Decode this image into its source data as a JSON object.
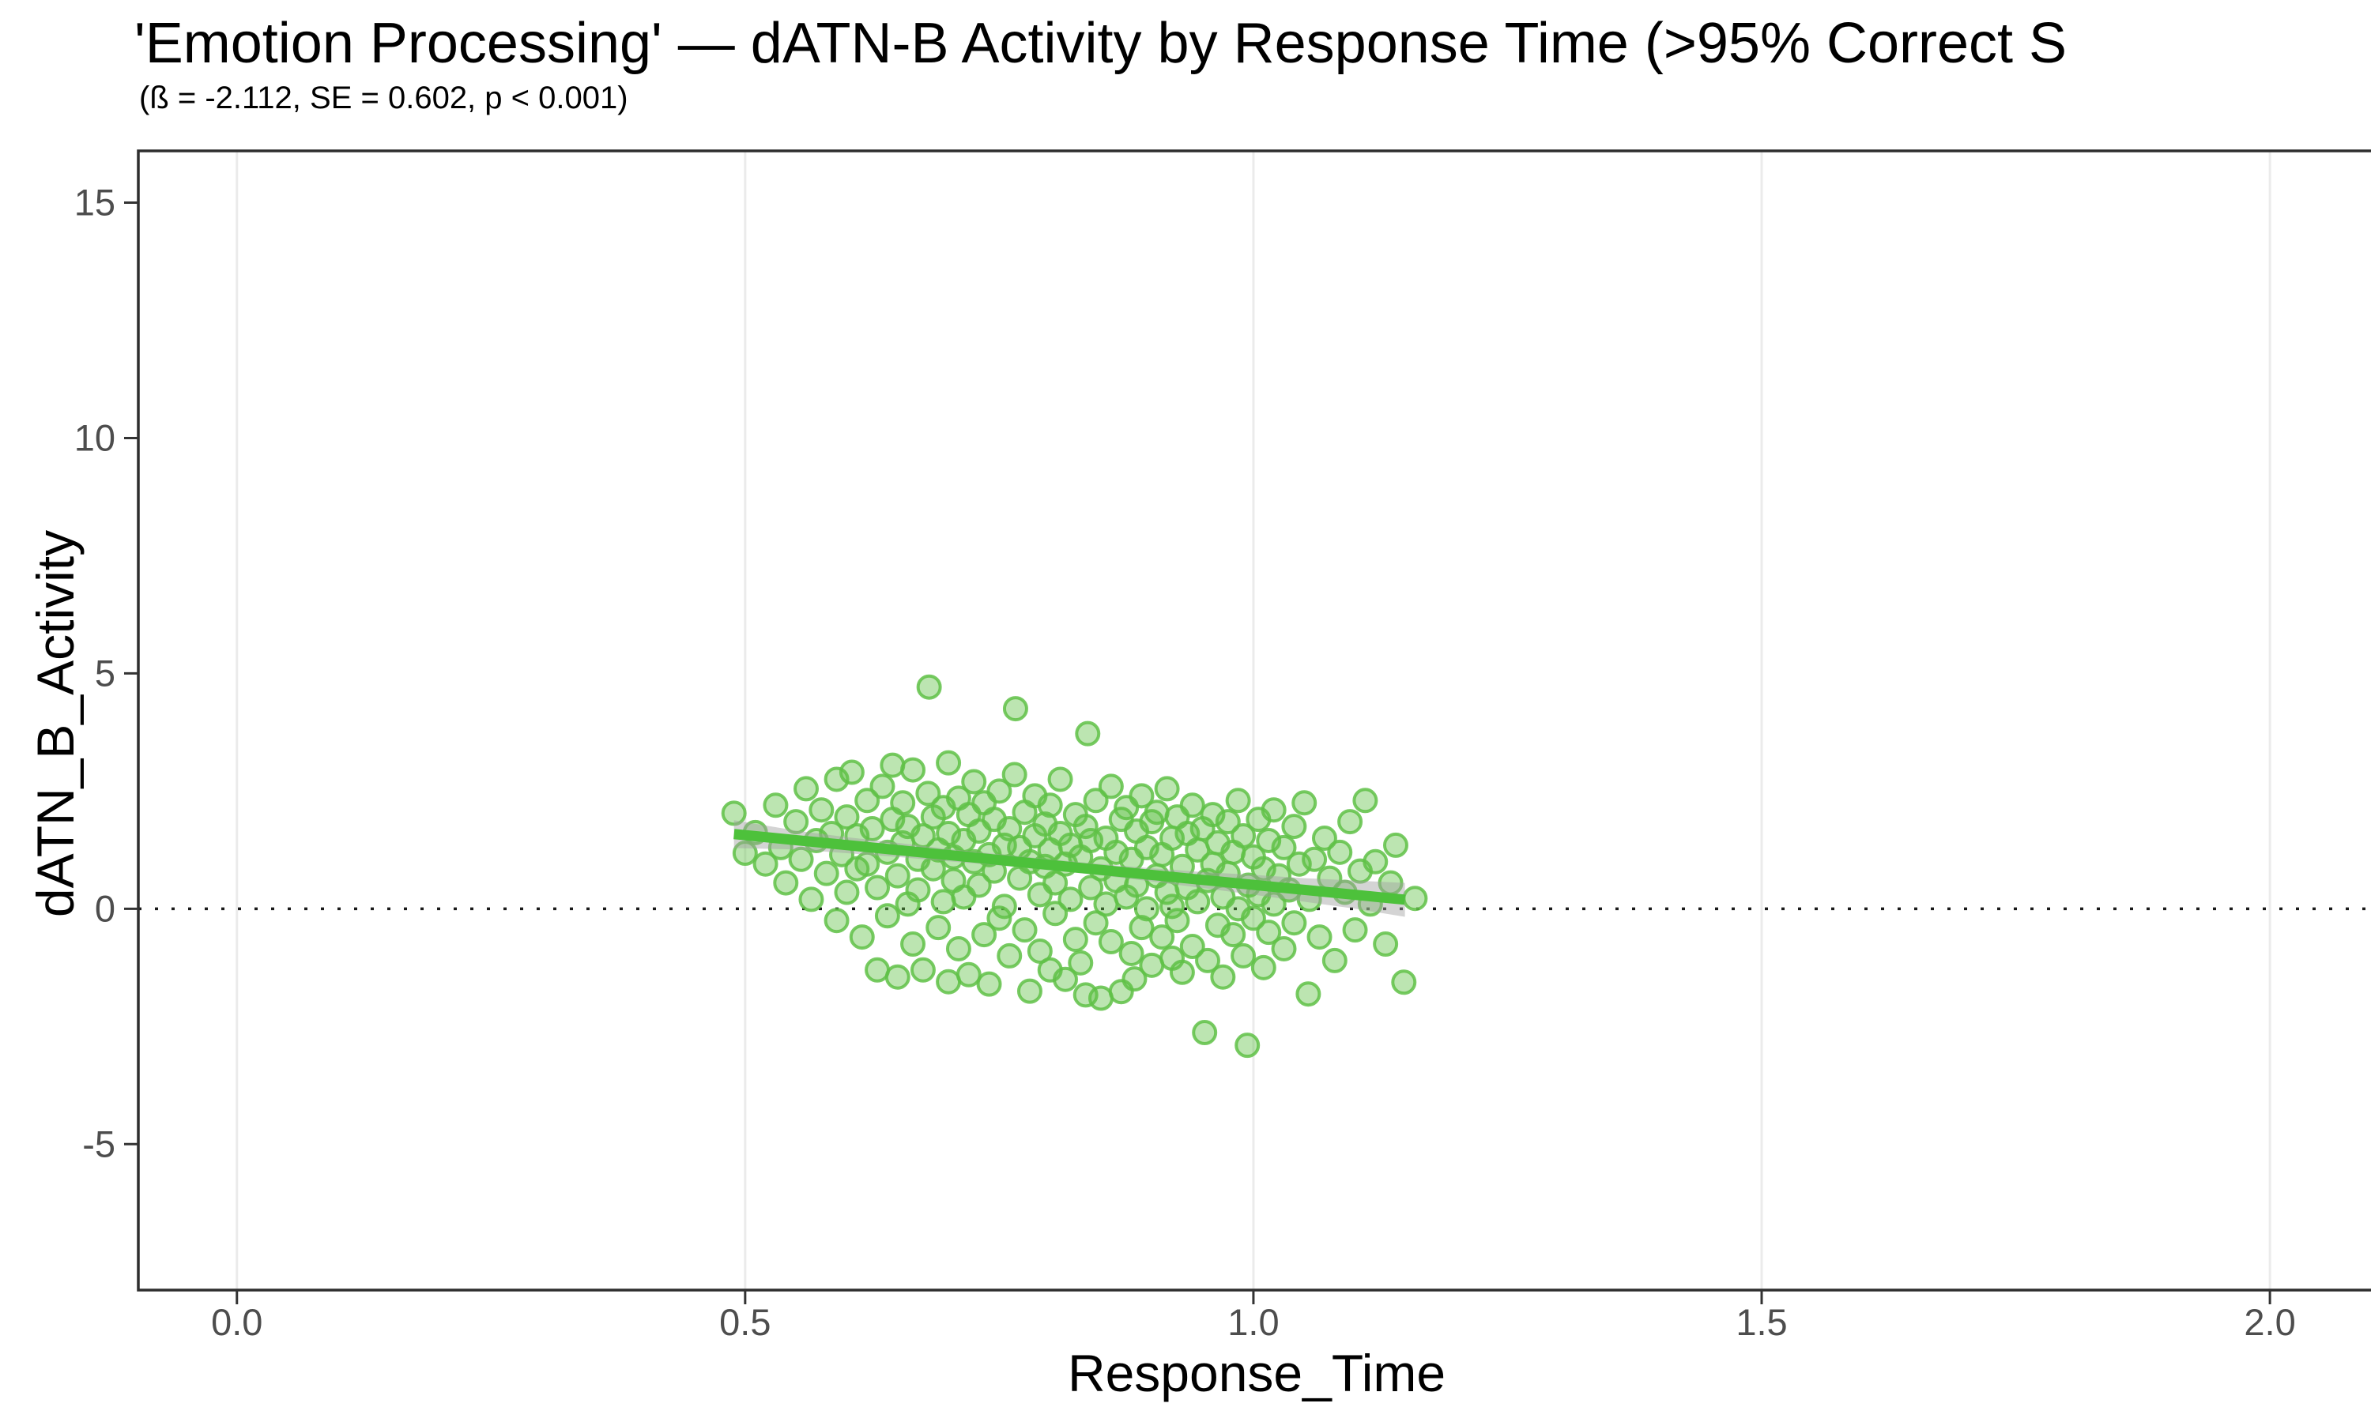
{
  "title": "'Emotion Processing' — dATN-B Activity by Response Time (>95% Correct S",
  "subtitle": "(ß = -2.112, SE = 0.602, p < 0.001)",
  "stats": {
    "beta": "-2.112",
    "se": "0.602",
    "p": "< 0.001"
  },
  "chart_data": {
    "type": "scatter",
    "title": "'Emotion Processing' — dATN-B Activity by Response Time (>95% Correct S",
    "subtitle": "(ß = -2.112, SE = 0.602, p < 0.001)",
    "xlabel": "Response_Time",
    "ylabel": "dATN_B_Activity",
    "xlim": [
      -0.097,
      2.101
    ],
    "ylim": [
      -8.1,
      16.1
    ],
    "x_ticks": [
      {
        "value": 0.0,
        "label": "0.0"
      },
      {
        "value": 0.5,
        "label": "0.5"
      },
      {
        "value": 1.0,
        "label": "1.0"
      },
      {
        "value": 1.5,
        "label": "1.5"
      },
      {
        "value": 2.0,
        "label": "2.0"
      }
    ],
    "y_ticks": [
      {
        "value": 15,
        "label": "15"
      },
      {
        "value": 10,
        "label": "10"
      },
      {
        "value": 5,
        "label": "5"
      },
      {
        "value": 0,
        "label": "0"
      },
      {
        "value": -5,
        "label": "-5"
      }
    ],
    "grid": "vertical-major-only",
    "legend": "none",
    "zero_reference_line_y": 0,
    "regression": {
      "slope": -2.112,
      "intercept": 2.62,
      "x_start": 0.489,
      "x_end": 1.149,
      "beta": -2.112,
      "se": 0.602,
      "p": "< 0.001"
    },
    "ribbon": [
      [
        0.489,
        1.29,
        1.88
      ],
      [
        0.55,
        1.26,
        1.66
      ],
      [
        0.6,
        1.18,
        1.52
      ],
      [
        0.65,
        1.1,
        1.4
      ],
      [
        0.7,
        1.01,
        1.27
      ],
      [
        0.75,
        0.92,
        1.16
      ],
      [
        0.8,
        0.82,
        1.05
      ],
      [
        0.85,
        0.71,
        0.95
      ],
      [
        0.9,
        0.58,
        0.86
      ],
      [
        0.95,
        0.44,
        0.78
      ],
      [
        1.0,
        0.3,
        0.72
      ],
      [
        1.05,
        0.15,
        0.65
      ],
      [
        1.1,
        0.0,
        0.6
      ],
      [
        1.149,
        -0.17,
        0.55
      ]
    ],
    "points": [
      [
        0.489,
        2.03
      ],
      [
        0.5,
        1.18
      ],
      [
        0.51,
        1.62
      ],
      [
        0.52,
        0.95
      ],
      [
        0.53,
        2.2
      ],
      [
        0.535,
        1.3
      ],
      [
        0.54,
        0.55
      ],
      [
        0.55,
        1.85
      ],
      [
        0.555,
        1.05
      ],
      [
        0.56,
        2.55
      ],
      [
        0.565,
        0.2
      ],
      [
        0.57,
        1.45
      ],
      [
        0.575,
        2.1
      ],
      [
        0.58,
        0.75
      ],
      [
        0.585,
        1.6
      ],
      [
        0.59,
        -0.25
      ],
      [
        0.59,
        2.75
      ],
      [
        0.595,
        1.15
      ],
      [
        0.6,
        0.35
      ],
      [
        0.6,
        1.95
      ],
      [
        0.605,
        2.9
      ],
      [
        0.61,
        0.85
      ],
      [
        0.61,
        1.55
      ],
      [
        0.615,
        -0.6
      ],
      [
        0.62,
        2.3
      ],
      [
        0.62,
        0.95
      ],
      [
        0.625,
        1.7
      ],
      [
        0.63,
        -1.3
      ],
      [
        0.63,
        0.45
      ],
      [
        0.635,
        2.6
      ],
      [
        0.64,
        1.2
      ],
      [
        0.64,
        -0.15
      ],
      [
        0.645,
        1.9
      ],
      [
        0.645,
        3.05
      ],
      [
        0.65,
        0.7
      ],
      [
        0.65,
        -1.45
      ],
      [
        0.655,
        1.4
      ],
      [
        0.655,
        2.25
      ],
      [
        0.66,
        0.1
      ],
      [
        0.66,
        1.75
      ],
      [
        0.665,
        -0.75
      ],
      [
        0.665,
        2.95
      ],
      [
        0.67,
        1.05
      ],
      [
        0.67,
        0.4
      ],
      [
        0.675,
        1.55
      ],
      [
        0.675,
        -1.3
      ],
      [
        0.68,
        2.45
      ],
      [
        0.681,
        4.71
      ],
      [
        0.685,
        0.85
      ],
      [
        0.685,
        1.95
      ],
      [
        0.69,
        -0.4
      ],
      [
        0.69,
        1.25
      ],
      [
        0.695,
        2.15
      ],
      [
        0.695,
        0.15
      ],
      [
        0.7,
        1.6
      ],
      [
        0.7,
        -1.55
      ],
      [
        0.7,
        3.1
      ],
      [
        0.705,
        0.6
      ],
      [
        0.705,
        1.1
      ],
      [
        0.71,
        2.35
      ],
      [
        0.71,
        -0.85
      ],
      [
        0.715,
        1.45
      ],
      [
        0.715,
        0.25
      ],
      [
        0.72,
        2.0
      ],
      [
        0.72,
        -1.4
      ],
      [
        0.725,
        1.0
      ],
      [
        0.725,
        2.7
      ],
      [
        0.73,
        0.5
      ],
      [
        0.73,
        1.65
      ],
      [
        0.735,
        -0.55
      ],
      [
        0.735,
        2.25
      ],
      [
        0.74,
        1.15
      ],
      [
        0.74,
        -1.6
      ],
      [
        0.745,
        0.8
      ],
      [
        0.745,
        1.9
      ],
      [
        0.75,
        -0.2
      ],
      [
        0.75,
        2.5
      ],
      [
        0.755,
        1.35
      ],
      [
        0.755,
        0.05
      ],
      [
        0.76,
        1.7
      ],
      [
        0.76,
        -1.0
      ],
      [
        0.765,
        2.85
      ],
      [
        0.766,
        4.25
      ],
      [
        0.77,
        0.65
      ],
      [
        0.77,
        1.3
      ],
      [
        0.775,
        -0.45
      ],
      [
        0.775,
        2.05
      ],
      [
        0.78,
        1.0
      ],
      [
        0.78,
        -1.75
      ],
      [
        0.785,
        1.55
      ],
      [
        0.785,
        2.4
      ],
      [
        0.79,
        0.3
      ],
      [
        0.79,
        -0.9
      ],
      [
        0.795,
        1.8
      ],
      [
        0.795,
        0.9
      ],
      [
        0.8,
        -1.3
      ],
      [
        0.8,
        2.2
      ],
      [
        0.8,
        1.25
      ],
      [
        0.805,
        0.55
      ],
      [
        0.805,
        -0.1
      ],
      [
        0.81,
        1.6
      ],
      [
        0.81,
        2.75
      ],
      [
        0.815,
        0.95
      ],
      [
        0.815,
        -1.5
      ],
      [
        0.82,
        1.35
      ],
      [
        0.82,
        0.2
      ],
      [
        0.825,
        2.0
      ],
      [
        0.825,
        -0.65
      ],
      [
        0.83,
        1.1
      ],
      [
        0.83,
        -1.15
      ],
      [
        0.835,
        1.75
      ],
      [
        0.835,
        -1.83
      ],
      [
        0.837,
        3.72
      ],
      [
        0.84,
        0.45
      ],
      [
        0.84,
        1.45
      ],
      [
        0.845,
        -0.3
      ],
      [
        0.845,
        2.3
      ],
      [
        0.85,
        0.85
      ],
      [
        0.85,
        -1.9
      ],
      [
        0.855,
        1.5
      ],
      [
        0.855,
        0.1
      ],
      [
        0.86,
        2.6
      ],
      [
        0.86,
        -0.7
      ],
      [
        0.865,
        1.2
      ],
      [
        0.865,
        0.6
      ],
      [
        0.87,
        -1.76
      ],
      [
        0.87,
        1.9
      ],
      [
        0.875,
        0.25
      ],
      [
        0.875,
        2.15
      ],
      [
        0.88,
        -0.95
      ],
      [
        0.88,
        1.05
      ],
      [
        0.883,
        -1.49
      ],
      [
        0.885,
        1.65
      ],
      [
        0.885,
        0.5
      ],
      [
        0.89,
        2.4
      ],
      [
        0.89,
        -0.4
      ],
      [
        0.895,
        1.3
      ],
      [
        0.895,
        0.0
      ],
      [
        0.9,
        1.85
      ],
      [
        0.9,
        -1.2
      ],
      [
        0.905,
        0.7
      ],
      [
        0.905,
        2.05
      ],
      [
        0.91,
        -0.6
      ],
      [
        0.91,
        1.15
      ],
      [
        0.915,
        0.35
      ],
      [
        0.915,
        2.55
      ],
      [
        0.92,
        -1.05
      ],
      [
        0.92,
        1.5
      ],
      [
        0.92,
        0.05
      ],
      [
        0.925,
        1.95
      ],
      [
        0.925,
        -0.25
      ],
      [
        0.93,
        0.9
      ],
      [
        0.93,
        -1.35
      ],
      [
        0.935,
        1.6
      ],
      [
        0.935,
        0.45
      ],
      [
        0.94,
        2.2
      ],
      [
        0.94,
        -0.8
      ],
      [
        0.945,
        1.25
      ],
      [
        0.945,
        0.15
      ],
      [
        0.95,
        1.7
      ],
      [
        0.952,
        -2.63
      ],
      [
        0.955,
        0.6
      ],
      [
        0.955,
        -1.1
      ],
      [
        0.96,
        2.0
      ],
      [
        0.96,
        0.95
      ],
      [
        0.965,
        -0.35
      ],
      [
        0.965,
        1.4
      ],
      [
        0.97,
        0.25
      ],
      [
        0.97,
        -1.45
      ],
      [
        0.975,
        1.85
      ],
      [
        0.975,
        0.75
      ],
      [
        0.98,
        -0.55
      ],
      [
        0.98,
        1.2
      ],
      [
        0.985,
        2.3
      ],
      [
        0.985,
        0.0
      ],
      [
        0.99,
        -1.0
      ],
      [
        0.99,
        1.55
      ],
      [
        0.994,
        -2.9
      ],
      [
        0.995,
        0.5
      ],
      [
        1.0,
        1.1
      ],
      [
        1.0,
        -0.2
      ],
      [
        1.005,
        1.9
      ],
      [
        1.005,
        0.3
      ],
      [
        1.01,
        -1.25
      ],
      [
        1.01,
        0.85
      ],
      [
        1.015,
        1.45
      ],
      [
        1.015,
        -0.5
      ],
      [
        1.02,
        2.1
      ],
      [
        1.02,
        0.1
      ],
      [
        1.025,
        0.7
      ],
      [
        1.03,
        -0.85
      ],
      [
        1.03,
        1.3
      ],
      [
        1.035,
        0.4
      ],
      [
        1.04,
        1.75
      ],
      [
        1.04,
        -0.3
      ],
      [
        1.045,
        0.95
      ],
      [
        1.05,
        2.25
      ],
      [
        1.054,
        -1.81
      ],
      [
        1.055,
        0.2
      ],
      [
        1.06,
        1.05
      ],
      [
        1.065,
        -0.6
      ],
      [
        1.07,
        1.5
      ],
      [
        1.075,
        0.65
      ],
      [
        1.08,
        -1.1
      ],
      [
        1.085,
        1.2
      ],
      [
        1.09,
        0.35
      ],
      [
        1.095,
        1.85
      ],
      [
        1.1,
        -0.45
      ],
      [
        1.105,
        0.8
      ],
      [
        1.11,
        2.3
      ],
      [
        1.115,
        0.1
      ],
      [
        1.12,
        1.0
      ],
      [
        1.13,
        -0.75
      ],
      [
        1.135,
        0.55
      ],
      [
        1.14,
        1.35
      ],
      [
        1.148,
        -1.56
      ],
      [
        1.159,
        0.22
      ]
    ],
    "colors": {
      "point_base": "#5FC146",
      "point_fill": "rgba(95,193,70,0.42)",
      "point_stroke": "rgba(95,193,70,0.85)",
      "regression_line": "#4DC13B",
      "ribbon": "rgba(160,160,160,0.45)",
      "gridline": "#EBEBEB",
      "panel_border": "#2e2e2e",
      "tick_mark": "#333333",
      "tick_label": "#4d4d4d",
      "zero_line": "#1a1a1a"
    }
  }
}
